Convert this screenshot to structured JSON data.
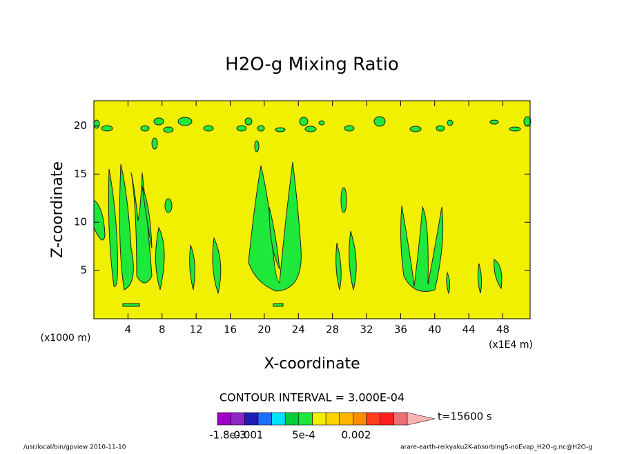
{
  "chart_data": {
    "type": "contour",
    "title": "H2O-g Mixing Ratio",
    "x_label": "X-coordinate",
    "y_label": "Z-coordinate",
    "x_unit_left": "(x1000 m)",
    "x_unit_right": "(x1E4 m)",
    "xlim": [
      0,
      51.2
    ],
    "ylim": [
      0,
      22.6
    ],
    "xticks": [
      4,
      8,
      12,
      16,
      20,
      24,
      28,
      32,
      36,
      40,
      44,
      48
    ],
    "yticks": [
      5,
      10,
      15,
      20
    ],
    "background_color": "#f0f000",
    "contour_interval": "CONTOUR INTERVAL = 3.000E-04",
    "time_label": "t=15600 s",
    "colorbar_colors": [
      "#a000c8",
      "#8c28c8",
      "#1e1eb4",
      "#1e6eff",
      "#00e0ff",
      "#00cc3c",
      "#1ee83a",
      "#f0f000",
      "#ffd200",
      "#ffb400",
      "#ff8c00",
      "#ff3c1e",
      "#ff1e1e",
      "#f06e78",
      "#ffb4b4"
    ],
    "colorbar_labels": [
      "-1.8e-3",
      "0.001",
      "5e-4",
      "0.002"
    ],
    "footer_left": "/usr/local/bin/gpview  2010-11-10",
    "footer_right": "arare-earth-reikyaku2K-absorbing5-noEvap_H2O-g.nc@H2O-g"
  }
}
